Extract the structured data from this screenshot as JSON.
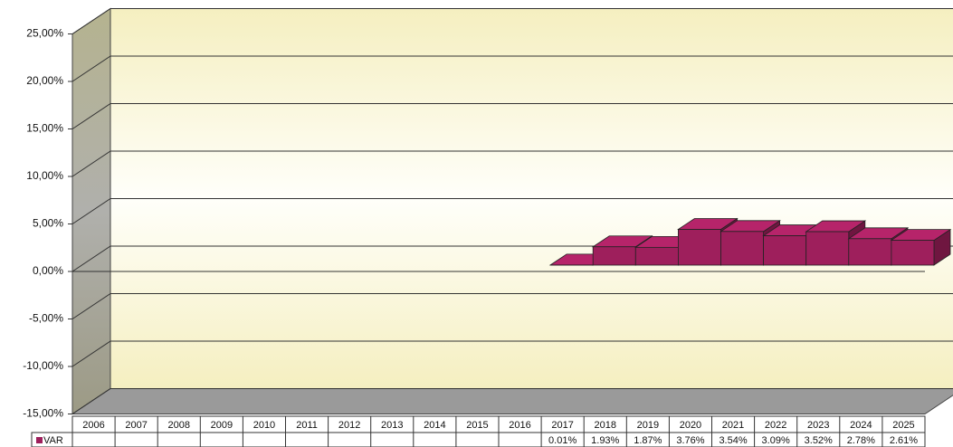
{
  "chart_data": {
    "type": "bar3d",
    "categories": [
      "2006",
      "2007",
      "2008",
      "2009",
      "2010",
      "2011",
      "2012",
      "2013",
      "2014",
      "2015",
      "2016",
      "2017",
      "2018",
      "2019",
      "2020",
      "2021",
      "2022",
      "2023",
      "2024",
      "2025"
    ],
    "series": [
      {
        "name": "VAR",
        "color": "#9e1f5c",
        "values": [
          null,
          null,
          null,
          null,
          null,
          null,
          null,
          null,
          null,
          null,
          null,
          0.01,
          1.93,
          1.87,
          3.76,
          3.54,
          3.09,
          3.52,
          2.78,
          2.61
        ],
        "value_labels": [
          null,
          null,
          null,
          null,
          null,
          null,
          null,
          null,
          null,
          null,
          null,
          "0.01%",
          "1.93%",
          "1.87%",
          "3.76%",
          "3.54%",
          "3.09%",
          "3.52%",
          "2.78%",
          "2.61%"
        ]
      }
    ],
    "ylim": [
      -15,
      25
    ],
    "yticks": [
      {
        "value": -15,
        "label": "-15,00%"
      },
      {
        "value": -10,
        "label": "-10,00%"
      },
      {
        "value": -5,
        "label": "-5,00%"
      },
      {
        "value": 0,
        "label": "0,00%"
      },
      {
        "value": 5,
        "label": "5,00%"
      },
      {
        "value": 10,
        "label": "10,00%"
      },
      {
        "value": 15,
        "label": "15,00%"
      },
      {
        "value": 20,
        "label": "20,00%"
      },
      {
        "value": 25,
        "label": "25,00%"
      }
    ],
    "grid": true,
    "data_table": true
  }
}
